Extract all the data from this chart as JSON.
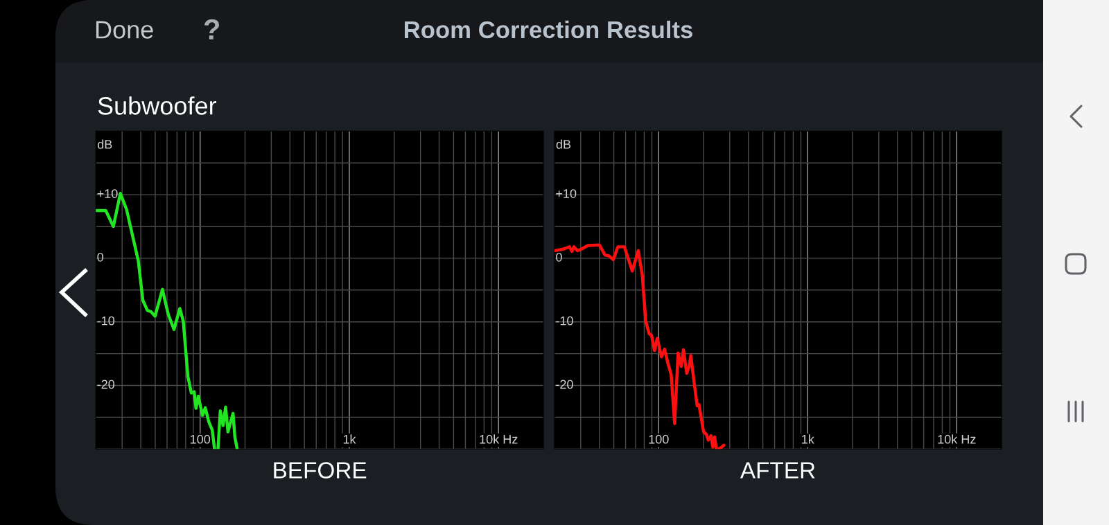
{
  "chart_data": [
    {
      "type": "line",
      "title": "Room Correction Results",
      "subtitle": "Subwoofer",
      "annotations": [
        "Done",
        "?"
      ],
      "xlabel": "BEFORE",
      "ylabel": "dB",
      "log": "x",
      "xlim": [
        20,
        20000
      ],
      "ylim": [
        -30,
        20
      ],
      "xticks": [
        {
          "value": 30,
          "label": null
        },
        {
          "value": 40,
          "label": null
        },
        {
          "value": 50,
          "label": null
        },
        {
          "value": 60,
          "label": null
        },
        {
          "value": 70,
          "label": null
        },
        {
          "value": 80,
          "label": null
        },
        {
          "value": 90,
          "label": null
        },
        100,
        {
          "value": 200,
          "label": null
        },
        {
          "value": 300,
          "label": null
        },
        {
          "value": 400,
          "label": null
        },
        {
          "value": 500,
          "label": null
        },
        {
          "value": 600,
          "label": null
        },
        {
          "value": 700,
          "label": null
        },
        {
          "value": 800,
          "label": null
        },
        {
          "value": 900,
          "label": null
        },
        {
          "value": 1000,
          "label": "1k"
        },
        {
          "value": 2000,
          "label": null
        },
        {
          "value": 3000,
          "label": null
        },
        {
          "value": 4000,
          "label": null
        },
        {
          "value": 5000,
          "label": null
        },
        {
          "value": 6000,
          "label": null
        },
        {
          "value": 7000,
          "label": null
        },
        {
          "value": 8000,
          "label": null
        },
        {
          "value": 9000,
          "label": null
        },
        {
          "value": 10000,
          "label": "10k Hz"
        }
      ],
      "yticks": [
        {
          "value": -30,
          "label": null
        },
        {
          "value": -25,
          "label": null
        },
        -20,
        {
          "value": -15,
          "label": null
        },
        -10,
        {
          "value": -5,
          "label": null
        },
        0,
        {
          "value": 5,
          "label": null
        },
        {
          "value": 10,
          "label": "+10"
        },
        {
          "value": 15,
          "label": null
        }
      ],
      "grid": true,
      "color": "#22e622",
      "x": [
        20,
        23.3,
        26.2,
        29.2,
        32.1,
        35.2,
        38.5,
        41.3,
        44.3,
        46.8,
        49.9,
        55.9,
        61.1,
        66.8,
        73.1,
        77.1,
        82.8,
        87.3,
        91.2,
        93.8,
        97.2,
        103.7,
        108.2,
        114.2,
        120.5,
        124.9,
        128,
        131.7,
        136.5,
        142.4,
        148.2,
        153.6,
        166.2,
        170.9,
        177.1
      ],
      "values": [
        7.5,
        7.5,
        5.0,
        10.2,
        7.7,
        3.6,
        -0.4,
        -6.6,
        -8.2,
        -8.4,
        -9.1,
        -4.9,
        -8.8,
        -11.2,
        -7.9,
        -9.9,
        -18.6,
        -21.2,
        -21.0,
        -23.6,
        -21.7,
        -24.7,
        -23.5,
        -25.7,
        -27.0,
        -30,
        null,
        -30,
        -24.0,
        -26.3,
        -23.4,
        -27.3,
        -24.4,
        -28.1,
        -30
      ]
    },
    {
      "type": "line",
      "xlabel": "AFTER",
      "ylabel": "dB",
      "log": "x",
      "xlim": [
        20,
        20000
      ],
      "ylim": [
        -30,
        20
      ],
      "xticks": [
        {
          "value": 30,
          "label": null
        },
        {
          "value": 40,
          "label": null
        },
        {
          "value": 50,
          "label": null
        },
        {
          "value": 60,
          "label": null
        },
        {
          "value": 70,
          "label": null
        },
        {
          "value": 80,
          "label": null
        },
        {
          "value": 90,
          "label": null
        },
        100,
        {
          "value": 200,
          "label": null
        },
        {
          "value": 300,
          "label": null
        },
        {
          "value": 400,
          "label": null
        },
        {
          "value": 500,
          "label": null
        },
        {
          "value": 600,
          "label": null
        },
        {
          "value": 700,
          "label": null
        },
        {
          "value": 800,
          "label": null
        },
        {
          "value": 900,
          "label": null
        },
        {
          "value": 1000,
          "label": "1k"
        },
        {
          "value": 2000,
          "label": null
        },
        {
          "value": 3000,
          "label": null
        },
        {
          "value": 4000,
          "label": null
        },
        {
          "value": 5000,
          "label": null
        },
        {
          "value": 6000,
          "label": null
        },
        {
          "value": 7000,
          "label": null
        },
        {
          "value": 8000,
          "label": null
        },
        {
          "value": 9000,
          "label": null
        },
        {
          "value": 10000,
          "label": "10k Hz"
        }
      ],
      "yticks": [
        {
          "value": -30,
          "label": null
        },
        {
          "value": -25,
          "label": null
        },
        -20,
        {
          "value": -15,
          "label": null
        },
        -10,
        {
          "value": -5,
          "label": null
        },
        0,
        {
          "value": 5,
          "label": null
        },
        {
          "value": 10,
          "label": "+10"
        },
        {
          "value": 15,
          "label": null
        }
      ],
      "grid": true,
      "color": "#ff1010",
      "x": [
        20,
        22.6,
        25.2,
        26.2,
        27.0,
        28.5,
        30.1,
        33.5,
        40.0,
        43.7,
        46.2,
        49.6,
        53.3,
        58.9,
        62.6,
        66.5,
        73.0,
        77.6,
        81.9,
        86.4,
        89.6,
        93.8,
        97.9,
        104.4,
        109.8,
        115,
        121.3,
        128,
        135,
        141.6,
        146.7,
        154.3,
        160.3,
        164.4,
        172.3,
        181.3,
        186.3,
        200.3,
        209.1,
        215.1,
        224.6,
        231.0,
        237.7,
        243.8,
        252.9,
        264.7,
        274.3
      ],
      "values": [
        1.2,
        1.4,
        1.8,
        1.1,
        1.8,
        1.2,
        1.4,
        2.0,
        2.1,
        0.5,
        0.4,
        -0.2,
        1.8,
        1.8,
        -0.1,
        -2.0,
        1.2,
        -2.6,
        -9.9,
        -11.9,
        -12.1,
        -14.5,
        -12.6,
        -15.5,
        -14.3,
        -16.4,
        -18.3,
        -26.0,
        -14.9,
        -17.0,
        -14.4,
        -18.1,
        -17.0,
        -15.3,
        -19.2,
        -23.2,
        -23.0,
        -27.3,
        -27.7,
        -28.6,
        -27.9,
        -29.7,
        -28.1,
        -30,
        -30,
        -29.7,
        -29.4
      ]
    }
  ]
}
